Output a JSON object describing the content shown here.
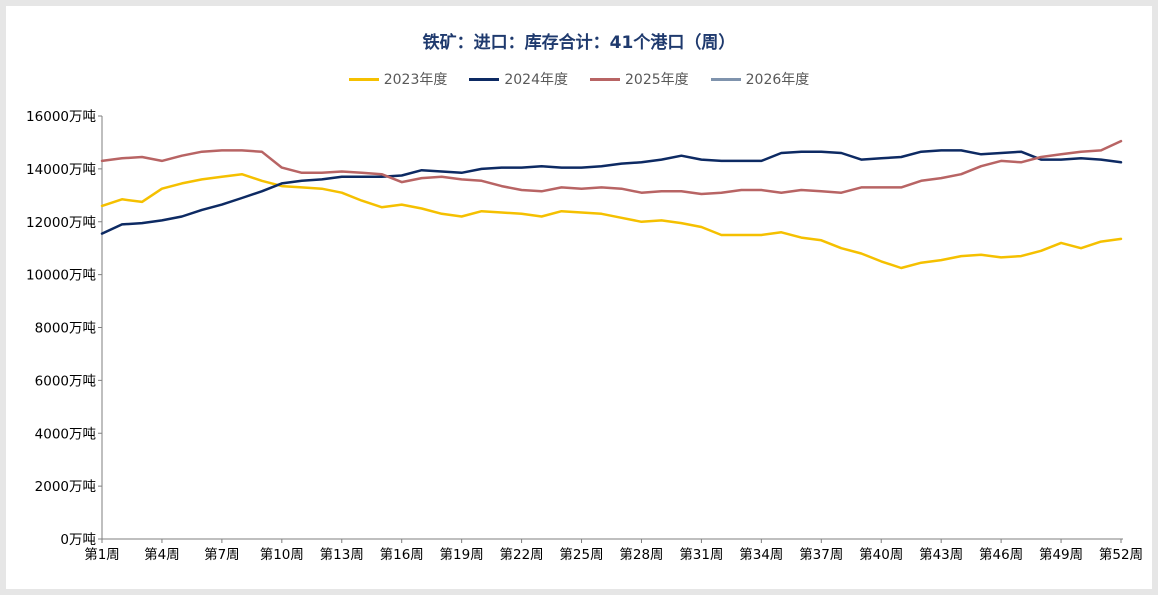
{
  "chart_data": {
    "type": "line",
    "title": "铁矿：进口：库存合计：41个港口（周）",
    "xlabel": "",
    "ylabel": "",
    "ylim": [
      0,
      16000
    ],
    "y_ticks": [
      "0万吨",
      "2000万吨",
      "4000万吨",
      "6000万吨",
      "8000万吨",
      "10000万吨",
      "12000万吨",
      "14000万吨",
      "16000万吨"
    ],
    "y_tick_values": [
      0,
      2000,
      4000,
      6000,
      8000,
      10000,
      12000,
      14000,
      16000
    ],
    "x_ticks": [
      "第1周",
      "第4周",
      "第7周",
      "第10周",
      "第13周",
      "第16周",
      "第19周",
      "第22周",
      "第25周",
      "第28周",
      "第31周",
      "第34周",
      "第37周",
      "第40周",
      "第43周",
      "第46周",
      "第49周",
      "第52周"
    ],
    "x_tick_weeks": [
      1,
      4,
      7,
      10,
      13,
      16,
      19,
      22,
      25,
      28,
      31,
      34,
      37,
      40,
      43,
      46,
      49,
      52
    ],
    "weeks": 52,
    "legend_position": "top",
    "series": [
      {
        "name": "2023年度",
        "color": "#f5c000",
        "values": [
          12600,
          12850,
          12750,
          13250,
          13450,
          13600,
          13700,
          13800,
          13550,
          13350,
          13300,
          13250,
          13100,
          12800,
          12550,
          12650,
          12500,
          12300,
          12200,
          12400,
          12350,
          12300,
          12200,
          12400,
          12350,
          12300,
          12150,
          12000,
          12050,
          11950,
          11800,
          11500,
          11500,
          11500,
          11600,
          11400,
          11300,
          11000,
          10800,
          10500,
          10250,
          10450,
          10550,
          10700,
          10750,
          10650,
          10700,
          10900,
          11200,
          11000,
          11250,
          11350
        ]
      },
      {
        "name": "2024年度",
        "color": "#0d2a63",
        "values": [
          11550,
          11900,
          11950,
          12050,
          12200,
          12450,
          12650,
          12900,
          13150,
          13450,
          13550,
          13600,
          13700,
          13700,
          13700,
          13750,
          13950,
          13900,
          13850,
          14000,
          14050,
          14050,
          14100,
          14050,
          14050,
          14100,
          14200,
          14250,
          14350,
          14500,
          14350,
          14300,
          14300,
          14300,
          14600,
          14650,
          14650,
          14600,
          14350,
          14400,
          14450,
          14650,
          14700,
          14700,
          14550,
          14600,
          14650,
          14350,
          14350,
          14400,
          14350,
          14250
        ]
      },
      {
        "name": "2025年度",
        "color": "#b86464",
        "values": [
          14300,
          14400,
          14450,
          14300,
          14500,
          14650,
          14700,
          14700,
          14650,
          14050,
          13850,
          13850,
          13900,
          13850,
          13800,
          13500,
          13650,
          13700,
          13600,
          13550,
          13350,
          13200,
          13150,
          13300,
          13250,
          13300,
          13250,
          13100,
          13150,
          13150,
          13050,
          13100,
          13200,
          13200,
          13100,
          13200,
          13150,
          13100,
          13300,
          13300,
          13300,
          13550,
          13650,
          13800,
          14100,
          14300,
          14250,
          14450,
          14550,
          14650,
          14700,
          15050
        ]
      },
      {
        "name": "2026年度",
        "color": "#7f93ad",
        "values": []
      }
    ]
  }
}
